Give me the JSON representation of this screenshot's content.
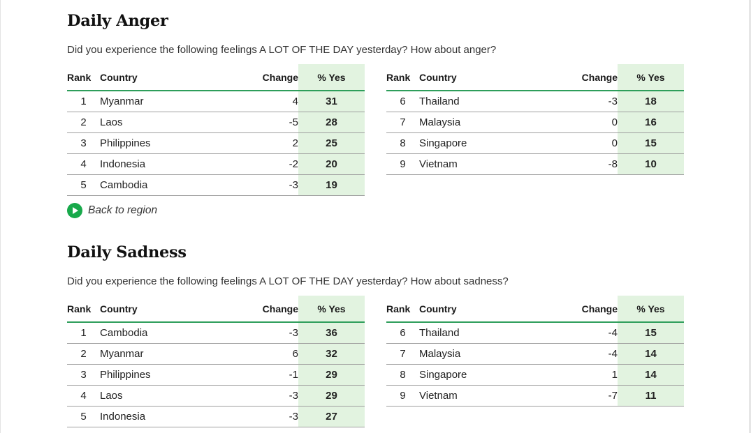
{
  "sections": [
    {
      "title": "Daily Anger",
      "question": "Did you experience the following feelings A LOT OF THE DAY yesterday? How about anger?",
      "columns": {
        "rank": "Rank",
        "country": "Country",
        "change": "Change",
        "yes": "% Yes"
      },
      "left_rows": [
        {
          "rank": "1",
          "country": "Myanmar",
          "change": "4",
          "yes": "31"
        },
        {
          "rank": "2",
          "country": "Laos",
          "change": "-5",
          "yes": "28"
        },
        {
          "rank": "3",
          "country": "Philippines",
          "change": "2",
          "yes": "25"
        },
        {
          "rank": "4",
          "country": "Indonesia",
          "change": "-2",
          "yes": "20"
        },
        {
          "rank": "5",
          "country": "Cambodia",
          "change": "-3",
          "yes": "19"
        }
      ],
      "right_rows": [
        {
          "rank": "6",
          "country": "Thailand",
          "change": "-3",
          "yes": "18"
        },
        {
          "rank": "7",
          "country": "Malaysia",
          "change": "0",
          "yes": "16"
        },
        {
          "rank": "8",
          "country": "Singapore",
          "change": "0",
          "yes": "15"
        },
        {
          "rank": "9",
          "country": "Vietnam",
          "change": "-8",
          "yes": "10"
        }
      ],
      "back_link": "Back to region"
    },
    {
      "title": "Daily Sadness",
      "question": "Did you experience the following feelings A LOT OF THE DAY yesterday? How about sadness?",
      "columns": {
        "rank": "Rank",
        "country": "Country",
        "change": "Change",
        "yes": "% Yes"
      },
      "left_rows": [
        {
          "rank": "1",
          "country": "Cambodia",
          "change": "-3",
          "yes": "36"
        },
        {
          "rank": "2",
          "country": "Myanmar",
          "change": "6",
          "yes": "32"
        },
        {
          "rank": "3",
          "country": "Philippines",
          "change": "-1",
          "yes": "29"
        },
        {
          "rank": "4",
          "country": "Laos",
          "change": "-3",
          "yes": "29"
        },
        {
          "rank": "5",
          "country": "Indonesia",
          "change": "-3",
          "yes": "27"
        }
      ],
      "right_rows": [
        {
          "rank": "6",
          "country": "Thailand",
          "change": "-4",
          "yes": "15"
        },
        {
          "rank": "7",
          "country": "Malaysia",
          "change": "-4",
          "yes": "14"
        },
        {
          "rank": "8",
          "country": "Singapore",
          "change": "1",
          "yes": "14"
        },
        {
          "rank": "9",
          "country": "Vietnam",
          "change": "-7",
          "yes": "11"
        }
      ]
    }
  ],
  "colors": {
    "accent_green": "#2e9e5b",
    "yes_column_bg": "#e2f3e0",
    "back_icon": "#18a94b"
  },
  "icons": {
    "back": "play-circle-icon"
  }
}
